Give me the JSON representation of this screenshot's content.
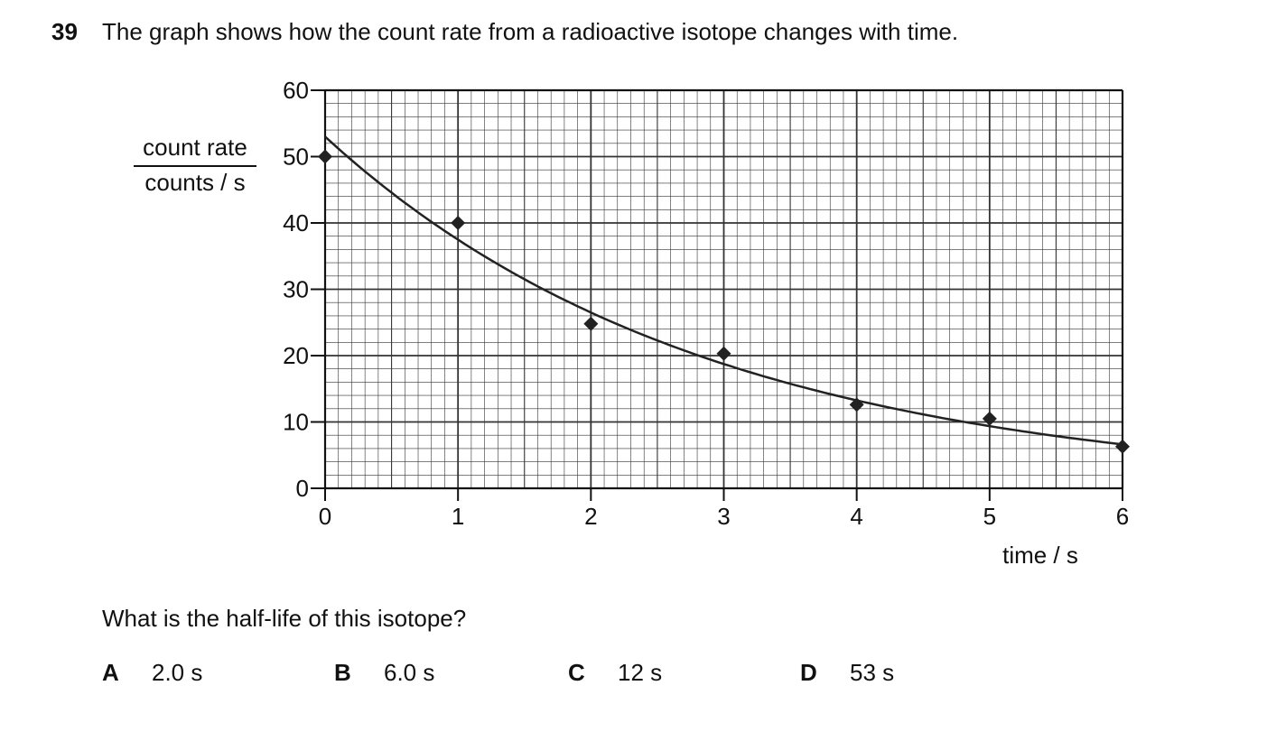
{
  "question": {
    "number": "39",
    "stem": "The graph shows how the count rate from a radioactive isotope changes with time.",
    "prompt": "What is the half-life of this isotope?",
    "options": [
      {
        "letter": "A",
        "text": "2.0 s"
      },
      {
        "letter": "B",
        "text": "6.0 s"
      },
      {
        "letter": "C",
        "text": "12 s"
      },
      {
        "letter": "D",
        "text": "53 s"
      }
    ]
  },
  "chart_data": {
    "type": "scatter",
    "title": "",
    "ylabel_numerator": "count rate",
    "ylabel_denominator": "counts / s",
    "xlabel": "time / s",
    "xlim": [
      0,
      6
    ],
    "ylim": [
      0,
      60
    ],
    "x_ticks": [
      0,
      1,
      2,
      3,
      4,
      5,
      6
    ],
    "y_ticks": [
      0,
      10,
      20,
      30,
      40,
      50,
      60
    ],
    "grid": "on",
    "points": [
      {
        "x": 0,
        "y": 50
      },
      {
        "x": 1,
        "y": 40
      },
      {
        "x": 2,
        "y": 24.8
      },
      {
        "x": 3,
        "y": 20.3
      },
      {
        "x": 4,
        "y": 12.6
      },
      {
        "x": 5,
        "y": 10.5
      },
      {
        "x": 6,
        "y": 6.3
      }
    ],
    "curve": {
      "type": "exponential-decay",
      "y0": 53,
      "half_life": 2.0
    },
    "colors": {
      "grid": "#333333",
      "marker": "#222222",
      "curve": "#222222"
    }
  }
}
